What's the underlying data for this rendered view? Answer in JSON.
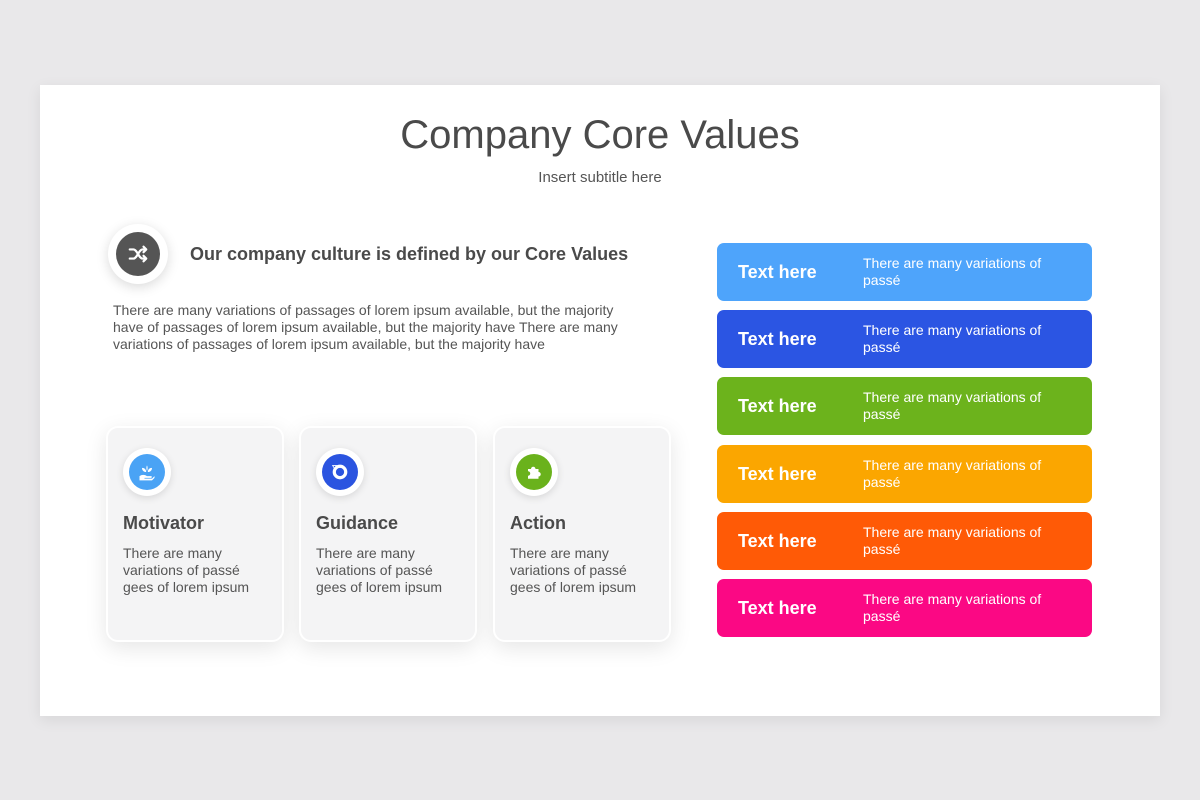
{
  "title": "Company Core Values",
  "subtitle": "Insert subtitle here",
  "intro": {
    "icon": "shuffle-icon",
    "heading": "Our company culture is defined by our Core Values",
    "paragraph": "There are many variations of passages of lorem ipsum available, but the majority have of passages of lorem ipsum available, but the majority have There are many variations of passages of lorem ipsum available, but the majority have"
  },
  "cards": [
    {
      "title": "Motivator",
      "text": "There are many variations of passé gees of lorem ipsum",
      "icon": "hand-plant-icon",
      "color": "#4aa3f5"
    },
    {
      "title": "Guidance",
      "text": "There are many variations of passé gees of lorem ipsum",
      "icon": "target-icon",
      "color": "#2b54e0"
    },
    {
      "title": "Action",
      "text": "There are many variations of passé gees of lorem ipsum",
      "icon": "puzzle-icon",
      "color": "#6ab21c"
    }
  ],
  "bars": [
    {
      "label": "Text here",
      "text": "There are many variations of passé",
      "color": "#4ea4fb"
    },
    {
      "label": "Text here",
      "text": "There are many variations of passé",
      "color": "#2b55e3"
    },
    {
      "label": "Text here",
      "text": "There are many variations of passé",
      "color": "#6cb31c"
    },
    {
      "label": "Text here",
      "text": "There are many variations of passé",
      "color": "#fba600"
    },
    {
      "label": "Text here",
      "text": "There are many variations of passé",
      "color": "#ff5a06"
    },
    {
      "label": "Text here",
      "text": "There are many variations of passé",
      "color": "#fb0884"
    }
  ]
}
